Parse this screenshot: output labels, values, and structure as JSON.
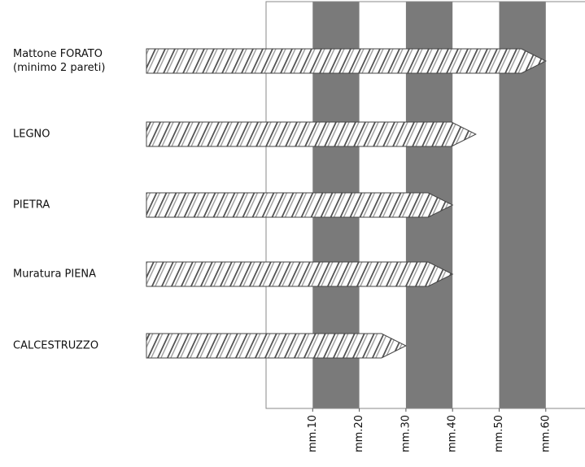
{
  "chart_data": {
    "type": "bar",
    "orientation": "horizontal",
    "categories": [
      "Mattone FORATO\n(minimo 2 pareti)",
      "LEGNO",
      "PIETRA",
      "Muratura PIENA",
      "CALCESTRUZZO"
    ],
    "values": [
      60,
      45,
      40,
      40,
      30
    ],
    "xlim": [
      0,
      68
    ],
    "xticks": [
      {
        "value": 10,
        "label": "mm.10"
      },
      {
        "value": 20,
        "label": "mm.20"
      },
      {
        "value": 30,
        "label": "mm.30"
      },
      {
        "value": 40,
        "label": "mm.40"
      },
      {
        "value": 50,
        "label": "mm.50"
      },
      {
        "value": 60,
        "label": "mm.60"
      }
    ],
    "bands": [
      [
        10,
        20
      ],
      [
        30,
        40
      ],
      [
        50,
        60
      ]
    ],
    "band_color": "#7a7a7a"
  }
}
